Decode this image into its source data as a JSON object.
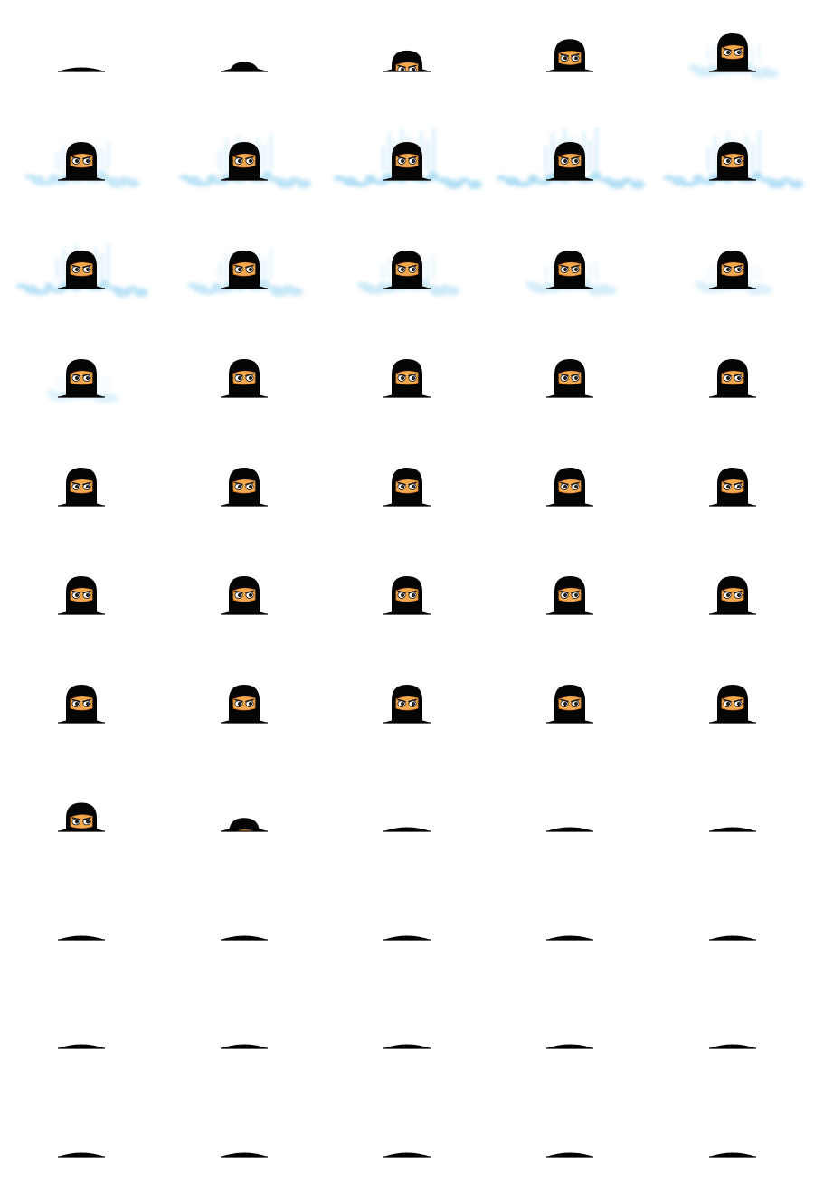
{
  "sprite_sheet": {
    "columns": 5,
    "rows": 11,
    "background": "#ffffff",
    "colors": {
      "hood": "#050505",
      "skin": "#f4a94e",
      "skin_dark": "#d8812a",
      "eye_white": "#ffffff",
      "pupil": "#1a1a1a",
      "splash": "#8fd0f0",
      "ground": "#000000"
    },
    "frames": [
      {
        "state": "hole",
        "emerge": 0.0,
        "splash": 0
      },
      {
        "state": "rising",
        "emerge": 0.25,
        "splash": 0
      },
      {
        "state": "rising",
        "emerge": 0.55,
        "splash": 0
      },
      {
        "state": "rising",
        "emerge": 0.85,
        "splash": 0
      },
      {
        "state": "rising",
        "emerge": 1.0,
        "splash": 0.3
      },
      {
        "state": "splash",
        "emerge": 1.0,
        "splash": 0.6
      },
      {
        "state": "splash",
        "emerge": 1.0,
        "splash": 0.8
      },
      {
        "state": "splash",
        "emerge": 1.0,
        "splash": 1.0
      },
      {
        "state": "splash",
        "emerge": 1.0,
        "splash": 1.0
      },
      {
        "state": "splash",
        "emerge": 1.0,
        "splash": 0.9
      },
      {
        "state": "splash",
        "emerge": 1.0,
        "splash": 0.8
      },
      {
        "state": "splash",
        "emerge": 1.0,
        "splash": 0.6
      },
      {
        "state": "splash",
        "emerge": 1.0,
        "splash": 0.45
      },
      {
        "state": "splash",
        "emerge": 1.0,
        "splash": 0.3
      },
      {
        "state": "splash",
        "emerge": 1.0,
        "splash": 0.15
      },
      {
        "state": "idle",
        "emerge": 1.0,
        "splash": 0.08
      },
      {
        "state": "idle",
        "emerge": 1.0,
        "splash": 0
      },
      {
        "state": "idle",
        "emerge": 1.0,
        "splash": 0
      },
      {
        "state": "idle",
        "emerge": 1.0,
        "splash": 0
      },
      {
        "state": "idle",
        "emerge": 1.0,
        "splash": 0
      },
      {
        "state": "idle",
        "emerge": 1.0,
        "splash": 0
      },
      {
        "state": "idle",
        "emerge": 1.0,
        "splash": 0
      },
      {
        "state": "idle",
        "emerge": 1.0,
        "splash": 0
      },
      {
        "state": "idle",
        "emerge": 1.0,
        "splash": 0
      },
      {
        "state": "idle",
        "emerge": 1.0,
        "splash": 0
      },
      {
        "state": "idle",
        "emerge": 1.0,
        "splash": 0
      },
      {
        "state": "idle",
        "emerge": 1.0,
        "splash": 0
      },
      {
        "state": "idle",
        "emerge": 1.0,
        "splash": 0
      },
      {
        "state": "idle",
        "emerge": 1.0,
        "splash": 0
      },
      {
        "state": "idle",
        "emerge": 1.0,
        "splash": 0
      },
      {
        "state": "idle",
        "emerge": 1.0,
        "splash": 0
      },
      {
        "state": "idle",
        "emerge": 1.0,
        "splash": 0
      },
      {
        "state": "idle",
        "emerge": 1.0,
        "splash": 0
      },
      {
        "state": "idle",
        "emerge": 1.0,
        "splash": 0
      },
      {
        "state": "idle",
        "emerge": 1.0,
        "splash": 0
      },
      {
        "state": "sinking",
        "emerge": 0.75,
        "splash": 0
      },
      {
        "state": "sinking",
        "emerge": 0.35,
        "splash": 0
      },
      {
        "state": "hole",
        "emerge": 0.0,
        "splash": 0
      },
      {
        "state": "hole",
        "emerge": 0.0,
        "splash": 0
      },
      {
        "state": "hole",
        "emerge": 0.0,
        "splash": 0
      },
      {
        "state": "hole",
        "emerge": 0.0,
        "splash": 0
      },
      {
        "state": "hole",
        "emerge": 0.0,
        "splash": 0
      },
      {
        "state": "hole",
        "emerge": 0.0,
        "splash": 0
      },
      {
        "state": "hole",
        "emerge": 0.0,
        "splash": 0
      },
      {
        "state": "hole",
        "emerge": 0.0,
        "splash": 0
      },
      {
        "state": "hole",
        "emerge": 0.0,
        "splash": 0
      },
      {
        "state": "hole",
        "emerge": 0.0,
        "splash": 0
      },
      {
        "state": "hole",
        "emerge": 0.0,
        "splash": 0
      },
      {
        "state": "hole",
        "emerge": 0.0,
        "splash": 0
      },
      {
        "state": "hole",
        "emerge": 0.0,
        "splash": 0
      },
      {
        "state": "hole",
        "emerge": 0.0,
        "splash": 0
      },
      {
        "state": "hole",
        "emerge": 0.0,
        "splash": 0
      },
      {
        "state": "hole",
        "emerge": 0.0,
        "splash": 0
      },
      {
        "state": "hole",
        "emerge": 0.0,
        "splash": 0
      },
      {
        "state": "hole",
        "emerge": 0.0,
        "splash": 0
      }
    ]
  }
}
